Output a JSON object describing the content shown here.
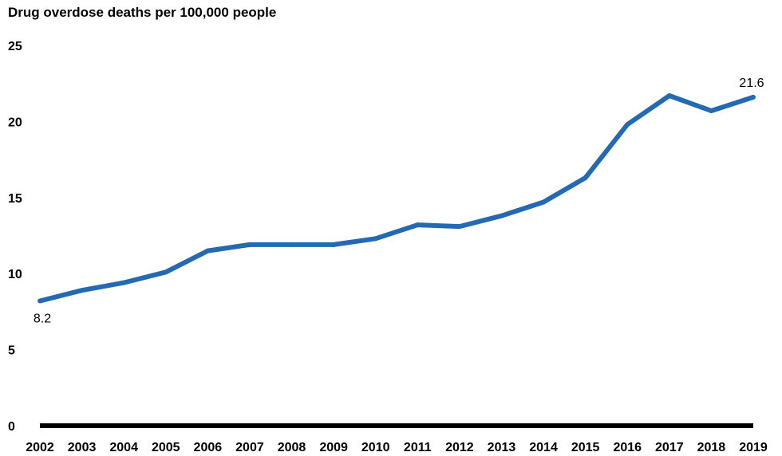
{
  "chart_data": {
    "type": "line",
    "title": "Drug overdose deaths per 100,000 people",
    "xlabel": "",
    "ylabel": "",
    "x": [
      "2002",
      "2003",
      "2004",
      "2005",
      "2006",
      "2007",
      "2008",
      "2009",
      "2010",
      "2011",
      "2012",
      "2013",
      "2014",
      "2015",
      "2016",
      "2017",
      "2018",
      "2019"
    ],
    "series": [
      {
        "values": [
          8.2,
          8.9,
          9.4,
          10.1,
          11.5,
          11.9,
          11.9,
          11.9,
          12.3,
          13.2,
          13.1,
          13.8,
          14.7,
          16.3,
          19.8,
          21.7,
          20.7,
          21.6
        ]
      }
    ],
    "yticks": [
      0,
      5,
      10,
      15,
      20,
      25
    ],
    "ylim": [
      0,
      25
    ],
    "data_labels": [
      {
        "index": 0,
        "text": "8.2"
      },
      {
        "index": 17,
        "text": "21.6"
      }
    ],
    "grid": false,
    "line_color": "#2469b3",
    "axis_color": "#000000"
  }
}
